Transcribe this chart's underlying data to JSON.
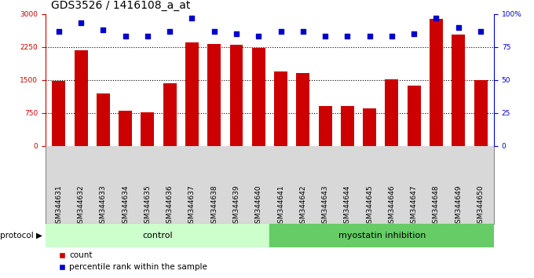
{
  "title": "GDS3526 / 1416108_a_at",
  "samples": [
    "GSM344631",
    "GSM344632",
    "GSM344633",
    "GSM344634",
    "GSM344635",
    "GSM344636",
    "GSM344637",
    "GSM344638",
    "GSM344639",
    "GSM344640",
    "GSM344641",
    "GSM344642",
    "GSM344643",
    "GSM344644",
    "GSM344645",
    "GSM344646",
    "GSM344647",
    "GSM344648",
    "GSM344649",
    "GSM344650"
  ],
  "counts": [
    1480,
    2180,
    1200,
    800,
    770,
    1430,
    2350,
    2320,
    2290,
    2230,
    1700,
    1650,
    900,
    900,
    850,
    1520,
    1380,
    2890,
    2530,
    1490
  ],
  "percentile": [
    87,
    93,
    88,
    83,
    83,
    87,
    97,
    87,
    85,
    83,
    87,
    87,
    83,
    83,
    83,
    83,
    85,
    97,
    90,
    87
  ],
  "control_count": 10,
  "myostatin_count": 10,
  "ylim_left": [
    0,
    3000
  ],
  "ylim_right": [
    0,
    100
  ],
  "yticks_left": [
    0,
    750,
    1500,
    2250,
    3000
  ],
  "yticks_right": [
    0,
    25,
    50,
    75,
    100
  ],
  "bar_color": "#cc0000",
  "dot_color": "#0000cc",
  "control_label": "control",
  "myostatin_label": "myostatin inhibition",
  "protocol_label": "protocol",
  "legend_count_label": "count",
  "legend_pct_label": "percentile rank within the sample",
  "control_bg": "#ccffcc",
  "myostatin_bg": "#66cc66",
  "xticklabel_bg": "#d8d8d8",
  "title_fontsize": 10,
  "tick_fontsize": 6.5,
  "legend_fontsize": 7.5
}
